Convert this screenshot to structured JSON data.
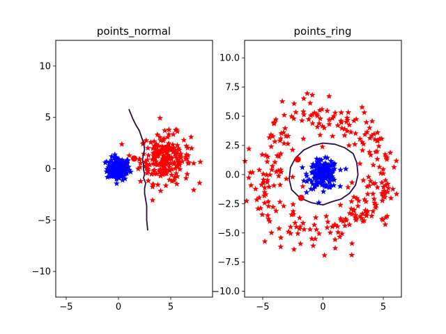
{
  "chart_data": [
    {
      "type": "scatter",
      "title": "points_normal",
      "xlim": [
        -6,
        9
      ],
      "ylim": [
        -12.5,
        12.5
      ],
      "xticks": [
        -5,
        0,
        5
      ],
      "xtick_labels": [
        "−5",
        "0",
        "5"
      ],
      "yticks": [
        -10,
        -5,
        0,
        5,
        10
      ],
      "ytick_labels": [
        "−10",
        "−5",
        "0",
        "5",
        "10"
      ],
      "grid": false,
      "series": [
        {
          "marker": "star",
          "color": "#0000ff",
          "center": [
            0.0,
            0.0
          ],
          "spread": 0.55,
          "count": 150
        },
        {
          "marker": "star",
          "color": "#ff0000",
          "center": [
            4.5,
            1.0
          ],
          "spread": 1.2,
          "count": 220
        }
      ],
      "highlight_points": {
        "marker": "circle",
        "color": "#ff0000",
        "points": [
          [
            1.5,
            1.0
          ]
        ]
      },
      "decision_boundary": {
        "color": "#2a0b48",
        "points": [
          [
            1.0,
            5.8
          ],
          [
            1.2,
            5.3
          ],
          [
            1.4,
            4.8
          ],
          [
            1.7,
            4.2
          ],
          [
            2.0,
            3.7
          ],
          [
            2.2,
            3.1
          ],
          [
            2.4,
            2.5
          ],
          [
            2.5,
            1.9
          ],
          [
            2.4,
            1.4
          ],
          [
            2.3,
            0.9
          ],
          [
            2.4,
            0.4
          ],
          [
            2.4,
            -0.1
          ],
          [
            2.5,
            -0.5
          ],
          [
            2.4,
            -0.9
          ],
          [
            2.6,
            -1.4
          ],
          [
            2.5,
            -1.9
          ],
          [
            2.5,
            -2.4
          ],
          [
            2.6,
            -3.0
          ],
          [
            2.7,
            -3.6
          ],
          [
            2.7,
            -4.4
          ],
          [
            2.7,
            -5.0
          ],
          [
            2.8,
            -6.0
          ]
        ]
      }
    },
    {
      "type": "scatter",
      "title": "points_ring",
      "xlim": [
        -6.5,
        6.5
      ],
      "ylim": [
        -10.5,
        11.5
      ],
      "xticks": [
        -5,
        0,
        5
      ],
      "xtick_labels": [
        "−5",
        "0",
        "5"
      ],
      "yticks": [
        -10,
        -7.5,
        -5,
        -2.5,
        0,
        2.5,
        5,
        7.5,
        10
      ],
      "ytick_labels": [
        "−10.0",
        "−7.5",
        "−5.0",
        "−2.5",
        "0.0",
        "2.5",
        "5.0",
        "7.5",
        "10.0"
      ],
      "grid": false,
      "series": [
        {
          "marker": "star",
          "color": "#0000ff",
          "center": [
            0.0,
            0.0
          ],
          "spread": 0.6,
          "count": 180
        },
        {
          "marker": "star",
          "color": "#ff0000",
          "ring_radius": 5.0,
          "ring_width": 0.9,
          "count": 300
        }
      ],
      "highlight_points": {
        "marker": "circle",
        "color": "#ff0000",
        "points": [
          [
            -2.1,
            1.3
          ],
          [
            -1.8,
            -2.0
          ]
        ]
      },
      "decision_boundary": {
        "color": "#2a0b48",
        "closed": true,
        "points": [
          [
            0.0,
            2.7
          ],
          [
            1.0,
            2.6
          ],
          [
            1.8,
            2.3
          ],
          [
            2.5,
            1.8
          ],
          [
            2.8,
            1.0
          ],
          [
            2.9,
            0.0
          ],
          [
            2.7,
            -0.9
          ],
          [
            2.2,
            -1.6
          ],
          [
            1.5,
            -2.1
          ],
          [
            0.8,
            -2.3
          ],
          [
            0.0,
            -2.6
          ],
          [
            -1.0,
            -2.4
          ],
          [
            -1.9,
            -2.0
          ],
          [
            -2.6,
            -1.3
          ],
          [
            -2.8,
            -0.4
          ],
          [
            -2.7,
            0.6
          ],
          [
            -2.3,
            1.4
          ],
          [
            -1.6,
            2.1
          ],
          [
            -0.8,
            2.5
          ]
        ]
      }
    }
  ]
}
